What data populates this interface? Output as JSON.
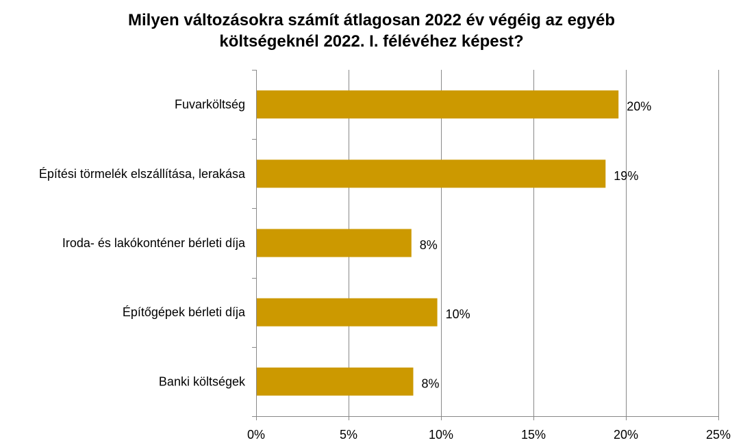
{
  "chart_data": {
    "type": "bar",
    "orientation": "horizontal",
    "title": "Milyen változásokra számít átlagosan 2022 év végéig az egyéb\nköltségeknél 2022. I. félévéhez képest?",
    "categories": [
      "Fuvarköltség",
      "Építési törmelék elszállítása, lerakása",
      "Iroda- és lakókonténer bérleti díja",
      "Építőgépek bérleti díja",
      "Banki költségek"
    ],
    "values": [
      19.6,
      18.9,
      8.4,
      9.8,
      8.5
    ],
    "data_labels": [
      "20%",
      "19%",
      "8%",
      "10%",
      "8%"
    ],
    "xlim": [
      0,
      25
    ],
    "x_ticks": [
      0,
      5,
      10,
      15,
      20,
      25
    ],
    "x_tick_labels": [
      "0%",
      "5%",
      "10%",
      "15%",
      "20%",
      "25%"
    ],
    "xlabel": "",
    "ylabel": "",
    "grid": "vertical",
    "legend": "none",
    "bar_color": "#CC9900",
    "grid_color": "#888888"
  }
}
